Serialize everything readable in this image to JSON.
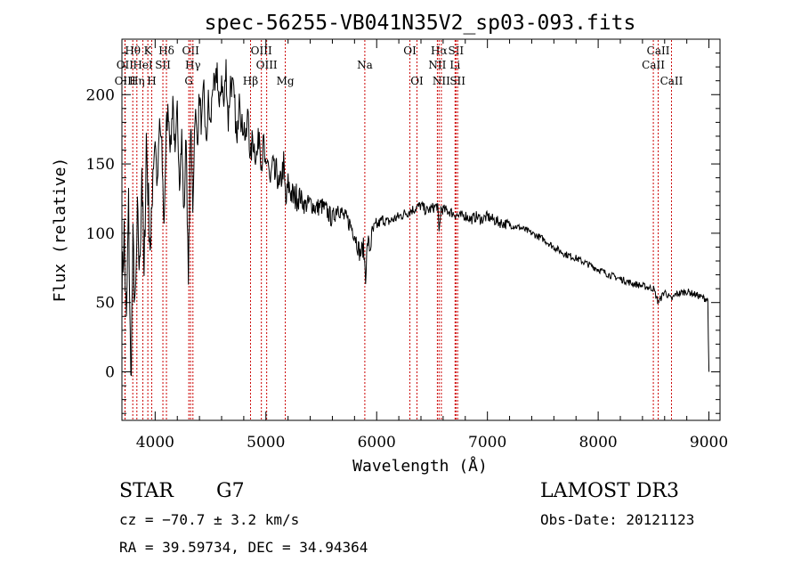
{
  "chart_data": {
    "type": "line",
    "title": "spec-56255-VB041N35V2_sp03-093.fits",
    "xlabel": "Wavelength (Å)",
    "ylabel": "Flux (relative)",
    "xlim": [
      3700,
      9100
    ],
    "ylim": [
      -35,
      240
    ],
    "x_ticks": [
      4000,
      5000,
      6000,
      7000,
      8000,
      9000
    ],
    "x_tick_labels": [
      "4000",
      "5000",
      "6000",
      "7000",
      "8000",
      "9000"
    ],
    "y_ticks": [
      0,
      50,
      100,
      150,
      200
    ],
    "y_tick_labels": [
      "0",
      "50",
      "100",
      "150",
      "200"
    ],
    "grid": false,
    "line_color": "#000000",
    "marker_color": "#cc0000",
    "spectrum": {
      "name": "",
      "x": [
        3700,
        3720,
        3740,
        3760,
        3780,
        3800,
        3820,
        3840,
        3860,
        3880,
        3900,
        3920,
        3940,
        3960,
        3980,
        4000,
        4020,
        4040,
        4060,
        4080,
        4100,
        4120,
        4140,
        4160,
        4180,
        4200,
        4220,
        4240,
        4260,
        4280,
        4300,
        4320,
        4340,
        4360,
        4380,
        4400,
        4420,
        4440,
        4460,
        4480,
        4500,
        4520,
        4540,
        4560,
        4580,
        4600,
        4620,
        4640,
        4660,
        4680,
        4700,
        4720,
        4740,
        4760,
        4780,
        4800,
        4820,
        4840,
        4860,
        4880,
        4900,
        4920,
        4940,
        4960,
        4980,
        5000,
        5020,
        5040,
        5060,
        5080,
        5100,
        5120,
        5140,
        5160,
        5180,
        5200,
        5250,
        5300,
        5350,
        5400,
        5450,
        5500,
        5550,
        5600,
        5650,
        5700,
        5750,
        5800,
        5850,
        5880,
        5900,
        5920,
        5940,
        5960,
        6000,
        6050,
        6100,
        6150,
        6200,
        6250,
        6300,
        6350,
        6400,
        6450,
        6500,
        6550,
        6563,
        6580,
        6600,
        6650,
        6700,
        6750,
        6800,
        6850,
        6900,
        6950,
        7000,
        7100,
        7200,
        7300,
        7400,
        7500,
        7600,
        7700,
        7800,
        7900,
        8000,
        8100,
        8200,
        8300,
        8400,
        8500,
        8542,
        8600,
        8662,
        8700,
        8800,
        8900,
        8990,
        9000
      ],
      "y": [
        60,
        100,
        30,
        120,
        -10,
        90,
        40,
        110,
        70,
        150,
        60,
        170,
        120,
        85,
        150,
        170,
        130,
        180,
        160,
        105,
        175,
        190,
        160,
        200,
        150,
        190,
        140,
        170,
        110,
        175,
        60,
        180,
        120,
        190,
        165,
        200,
        175,
        205,
        160,
        195,
        175,
        210,
        200,
        220,
        185,
        215,
        190,
        220,
        180,
        210,
        205,
        190,
        160,
        210,
        175,
        180,
        165,
        190,
        150,
        170,
        160,
        155,
        175,
        150,
        165,
        140,
        155,
        135,
        150,
        140,
        145,
        130,
        140,
        150,
        120,
        135,
        125,
        128,
        120,
        122,
        118,
        120,
        116,
        110,
        120,
        112,
        108,
        100,
        85,
        90,
        70,
        95,
        88,
        100,
        105,
        110,
        108,
        110,
        112,
        114,
        116,
        118,
        120,
        116,
        118,
        120,
        100,
        118,
        117,
        116,
        114,
        112,
        113,
        110,
        112,
        110,
        112,
        108,
        106,
        104,
        100,
        96,
        90,
        85,
        82,
        78,
        74,
        70,
        67,
        64,
        62,
        60,
        50,
        58,
        52,
        56,
        58,
        55,
        52,
        0
      ]
    },
    "line_markers": [
      {
        "label": "Hθ",
        "wavelength": 3798,
        "row": 1
      },
      {
        "label": "OII",
        "wavelength": 3727,
        "row": 2
      },
      {
        "label": "OIII",
        "wavelength": 3729,
        "row": 3
      },
      {
        "label": "K",
        "wavelength": 3934,
        "row": 1
      },
      {
        "label": "HeI",
        "wavelength": 3889,
        "row": 2
      },
      {
        "label": "Hη",
        "wavelength": 3835,
        "row": 3
      },
      {
        "label": "SII",
        "wavelength": 4070,
        "row": 2
      },
      {
        "label": "H",
        "wavelength": 3969,
        "row": 3
      },
      {
        "label": "Hδ",
        "wavelength": 4102,
        "row": 1
      },
      {
        "label": "OII",
        "wavelength": 4320,
        "row": 1
      },
      {
        "label": "Hγ",
        "wavelength": 4341,
        "row": 2
      },
      {
        "label": "G",
        "wavelength": 4304,
        "row": 3
      },
      {
        "label": "OIII",
        "wavelength": 4959,
        "row": 1
      },
      {
        "label": "OIII",
        "wavelength": 5007,
        "row": 2
      },
      {
        "label": "Hβ",
        "wavelength": 4861,
        "row": 3
      },
      {
        "label": "Mg",
        "wavelength": 5175,
        "row": 3
      },
      {
        "label": "Na",
        "wavelength": 5893,
        "row": 2
      },
      {
        "label": "OI",
        "wavelength": 6300,
        "row": 1
      },
      {
        "label": "OI",
        "wavelength": 6364,
        "row": 3
      },
      {
        "label": "Hα",
        "wavelength": 6563,
        "row": 1
      },
      {
        "label": "NII",
        "wavelength": 6548,
        "row": 2
      },
      {
        "label": "NII",
        "wavelength": 6584,
        "row": 3
      },
      {
        "label": "SII",
        "wavelength": 6716,
        "row": 1
      },
      {
        "label": "Li",
        "wavelength": 6708,
        "row": 2
      },
      {
        "label": "SII",
        "wavelength": 6731,
        "row": 3
      },
      {
        "label": "CaII",
        "wavelength": 8542,
        "row": 1
      },
      {
        "label": "CaII",
        "wavelength": 8498,
        "row": 2
      },
      {
        "label": "CaII",
        "wavelength": 8662,
        "row": 3
      }
    ]
  },
  "info": {
    "class": "STAR",
    "subclass": "G7",
    "survey": "LAMOST DR3",
    "cz": "cz = −70.7 ± 3.2 km/s",
    "obs_date": "Obs-Date: 20121123",
    "coords": "RA =  39.59734, DEC =  34.94364"
  }
}
